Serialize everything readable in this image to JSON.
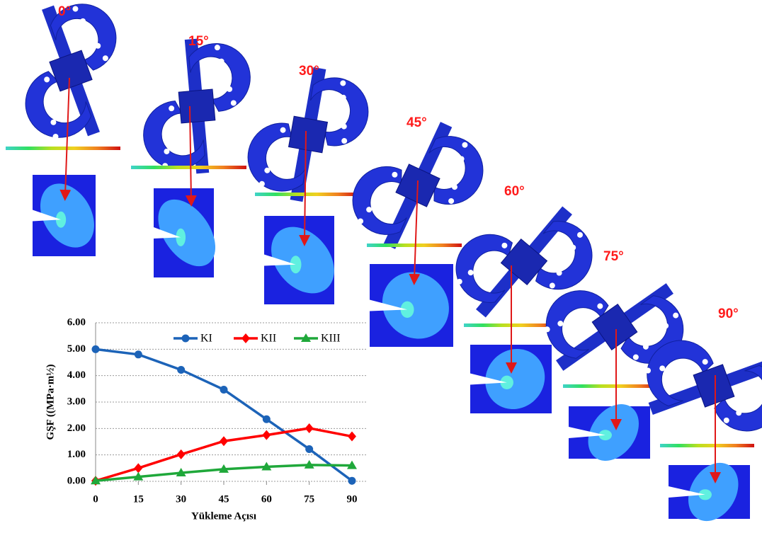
{
  "chart_data": {
    "type": "line",
    "x": [
      0,
      15,
      30,
      45,
      60,
      75,
      90
    ],
    "xlim": [
      0,
      90
    ],
    "xticks": [
      0,
      15,
      30,
      45,
      60,
      75,
      90
    ],
    "ylim": [
      0,
      6
    ],
    "yticks": [
      {
        "value": 0,
        "label": "0.00"
      },
      {
        "value": 1,
        "label": "1.00"
      },
      {
        "value": 2,
        "label": "2.00"
      },
      {
        "value": 3,
        "label": "3.00"
      },
      {
        "value": 4,
        "label": "4.00"
      },
      {
        "value": 5,
        "label": "5.00"
      },
      {
        "value": 6,
        "label": "6.00"
      }
    ],
    "grid": true,
    "xlabel": "Yükleme Açısı",
    "ylabel": "GŞF ((MPa·m½)",
    "series": [
      {
        "name": "KI",
        "color": "#1c63b8",
        "marker": "circle",
        "values": [
          5.0,
          4.8,
          4.22,
          3.47,
          2.35,
          1.22,
          0.02
        ]
      },
      {
        "name": "KII",
        "color": "#ff0000",
        "marker": "diamond",
        "values": [
          0.02,
          0.5,
          1.02,
          1.52,
          1.75,
          2.01,
          1.7
        ]
      },
      {
        "name": "KIII",
        "color": "#1fa83a",
        "marker": "triangle",
        "values": [
          0.02,
          0.17,
          0.32,
          0.46,
          0.55,
          0.62,
          0.6
        ]
      }
    ],
    "annotations": [
      "0°",
      "15°",
      "30°",
      "45°",
      "60°",
      "75°",
      "90°"
    ]
  }
}
